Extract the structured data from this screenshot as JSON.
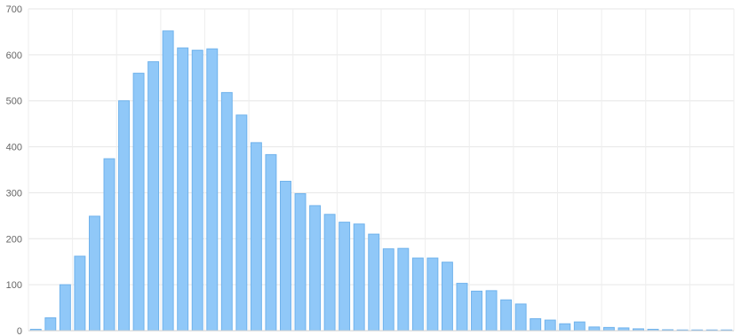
{
  "chart_data": {
    "type": "bar",
    "title": "",
    "xlabel": "",
    "ylabel": "",
    "ylim": [
      0,
      700
    ],
    "y_ticks": [
      "0",
      "100",
      "200",
      "300",
      "400",
      "500",
      "600",
      "700"
    ],
    "grid": true,
    "legend": "none",
    "bar_color": "#90c8f8",
    "bar_border_color": "#6fb2ec",
    "series": [
      {
        "values": [
          3,
          28,
          100,
          162,
          249,
          374,
          500,
          560,
          585,
          652,
          615,
          610,
          613,
          518,
          469,
          409,
          383,
          325,
          298,
          272,
          253,
          236,
          232,
          210,
          178,
          179,
          158,
          158,
          149,
          103,
          86,
          87,
          67,
          58,
          26,
          23,
          15,
          19,
          8,
          7,
          6,
          4,
          3,
          2,
          1,
          1,
          1,
          1
        ]
      }
    ]
  }
}
